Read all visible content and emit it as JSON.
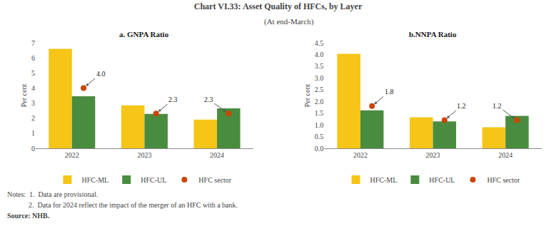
{
  "title": "Chart VI.33: Asset Quality of HFCs, by Layer",
  "subtitle": "(At end-March)",
  "annotations": [
    "Notes:  1.  Data are provisional.",
    "            2.  Data for 2024 reflect the impact of the merger of an HFC with a bank.",
    "Source: NHB."
  ],
  "chart_data": [
    {
      "type": "bar",
      "title": "a. GNPA Ratio",
      "ylabel": "Per cent",
      "categories": [
        "2022",
        "2023",
        "2024"
      ],
      "series": [
        {
          "name": "HFC-ML",
          "type": "bar",
          "color": "#f5c518",
          "values": [
            6.6,
            2.85,
            1.9
          ]
        },
        {
          "name": "HFC-UL",
          "type": "bar",
          "color": "#4a8c3f",
          "values": [
            3.45,
            2.28,
            2.65
          ]
        },
        {
          "name": "HFC sector",
          "type": "scatter",
          "marker": "circle",
          "color": "#cc4400",
          "values": [
            4.0,
            2.3,
            2.3
          ],
          "value_labels": [
            "4.0",
            "2.3",
            "2.3"
          ],
          "data_labels": true
        }
      ],
      "ylim": [
        0,
        7
      ],
      "yticks": [
        0,
        1,
        2,
        3,
        4,
        5,
        6,
        7
      ],
      "grid": false,
      "legend": "bottom"
    },
    {
      "type": "bar",
      "title": "b.NNPA Ratio",
      "ylabel": "Per cent",
      "categories": [
        "2022",
        "2023",
        "2024"
      ],
      "series": [
        {
          "name": "HFC-ML",
          "type": "bar",
          "color": "#f5c518",
          "values": [
            4.03,
            1.32,
            0.9
          ]
        },
        {
          "name": "HFC-UL",
          "type": "bar",
          "color": "#4a8c3f",
          "values": [
            1.62,
            1.15,
            1.38
          ]
        },
        {
          "name": "HFC sector",
          "type": "scatter",
          "marker": "circle",
          "color": "#cc4400",
          "values": [
            1.8,
            1.2,
            1.2
          ],
          "value_labels": [
            "1.8",
            "1.2",
            "1.2"
          ],
          "data_labels": true
        }
      ],
      "ylim": [
        0,
        4.5
      ],
      "yticks": [
        {
          "value": 0.0,
          "label": "0.0"
        },
        0.5,
        {
          "value": 1.0,
          "label": "1.0"
        },
        1.5,
        {
          "value": 2.0,
          "label": "2.0"
        },
        2.5,
        {
          "value": 3.0,
          "label": "3.0"
        },
        3.5,
        {
          "value": 4.0,
          "label": "4.0"
        },
        4.5
      ],
      "grid": false,
      "legend": "bottom"
    }
  ]
}
